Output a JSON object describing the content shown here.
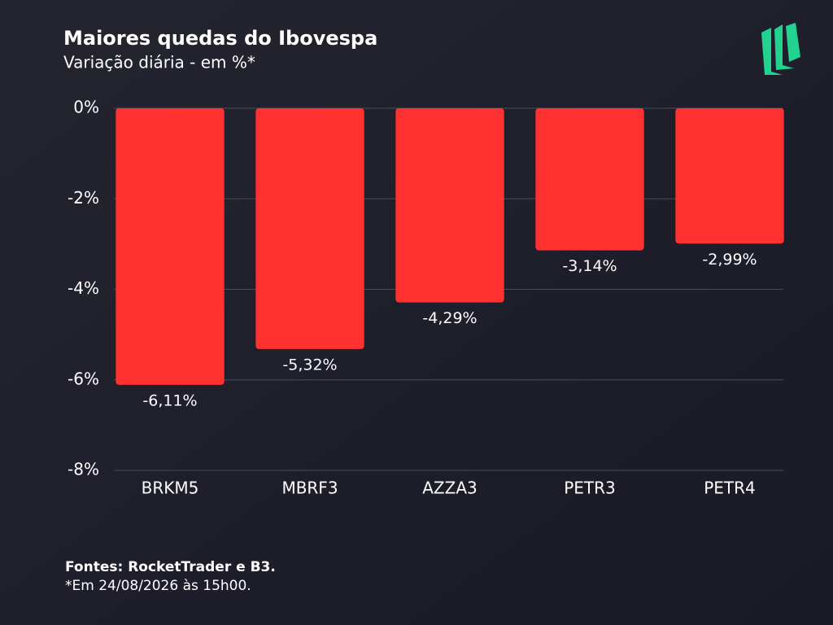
{
  "chart_data": {
    "type": "bar",
    "title": "Maiores quedas do Ibovespa",
    "subtitle": "Variação diária - em %*",
    "categories": [
      "BRKM5",
      "MBRF3",
      "AZZA3",
      "PETR3",
      "PETR4"
    ],
    "values": [
      -6.11,
      -5.32,
      -4.29,
      -3.14,
      -2.99
    ],
    "value_labels": [
      "-6,11%",
      "-5,32%",
      "-4,29%",
      "-3,14%",
      "-2,99%"
    ],
    "color": "#ff3131",
    "ylim": [
      -8,
      0
    ],
    "yticks": [
      {
        "value": 0,
        "label": "0%"
      },
      {
        "value": -2,
        "label": "-2%"
      },
      {
        "value": -4,
        "label": "-4%"
      },
      {
        "value": -6,
        "label": "-6%"
      },
      {
        "value": -8,
        "label": "-8%"
      }
    ],
    "grid": true,
    "source": "Fontes: RocketTrader e B3.",
    "note": "*Em 24/08/2026 às 15h00."
  }
}
